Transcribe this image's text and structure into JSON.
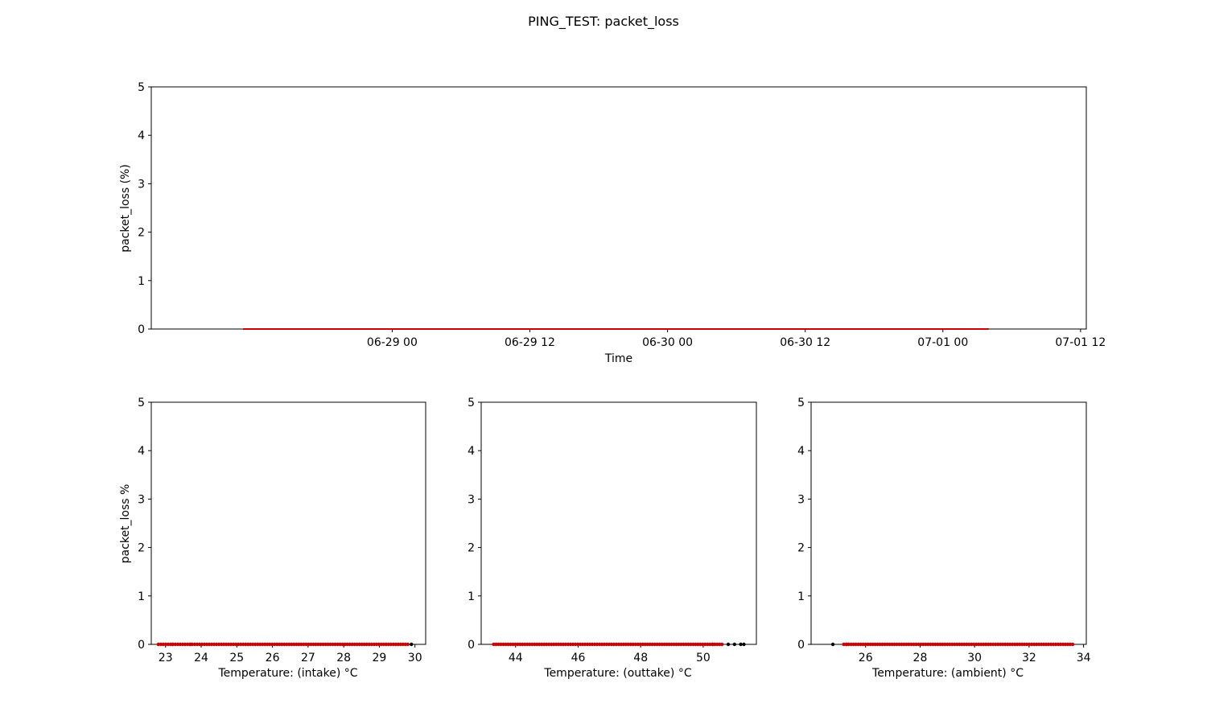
{
  "figure": {
    "title": "PING_TEST: packet_loss"
  },
  "colors": {
    "line": "#cc0000",
    "marker_red": "#cc0000",
    "marker_black": "#000000",
    "axes": "#000000"
  },
  "chart_data": [
    {
      "type": "line",
      "xlabel": "Time",
      "ylabel": "packet_loss (%)",
      "x_tick_labels": [
        "06-29 00",
        "06-29 12",
        "06-30 00",
        "06-30 12",
        "07-01 00",
        "07-01 12"
      ],
      "x_tick_values": [
        "2023-06-29T00:00",
        "2023-06-29T12:00",
        "2023-06-30T00:00",
        "2023-06-30T12:00",
        "2023-07-01T00:00",
        "2023-07-01T12:00"
      ],
      "xlim": [
        "2023-06-28T03:00",
        "2023-07-01T12:30"
      ],
      "ylim": [
        0,
        5
      ],
      "y_ticks": [
        0,
        1,
        2,
        3,
        4,
        5
      ],
      "series": [
        {
          "x": [
            "2023-06-28T11:00",
            "2023-07-01T04:00"
          ],
          "y": [
            0,
            0
          ]
        }
      ]
    },
    {
      "type": "scatter",
      "xlabel": "Temperature: (intake) °C",
      "ylabel": "packet_loss %",
      "xlim": [
        22.6,
        30.3
      ],
      "ylim": [
        0,
        5
      ],
      "x_ticks": [
        23,
        24,
        25,
        26,
        27,
        28,
        29,
        30
      ],
      "y_ticks": [
        0,
        1,
        2,
        3,
        4,
        5
      ],
      "range_red": [
        22.8,
        29.8
      ],
      "black_points": [
        23.2,
        23.7,
        29.9
      ],
      "y_value": 0
    },
    {
      "type": "scatter",
      "xlabel": "Temperature: (outtake) °C",
      "ylabel": "",
      "xlim": [
        42.9,
        51.7
      ],
      "ylim": [
        0,
        5
      ],
      "x_ticks": [
        44,
        46,
        48,
        50
      ],
      "y_ticks": [
        0,
        1,
        2,
        3,
        4,
        5
      ],
      "range_red": [
        43.3,
        50.6
      ],
      "black_points": [
        50.3,
        50.8,
        51.0,
        51.2,
        51.3
      ],
      "y_value": 0
    },
    {
      "type": "scatter",
      "xlabel": "Temperature: (ambient) °C",
      "ylabel": "",
      "xlim": [
        24.0,
        34.1
      ],
      "ylim": [
        0,
        5
      ],
      "x_ticks": [
        26,
        28,
        30,
        32,
        34
      ],
      "y_ticks": [
        0,
        1,
        2,
        3,
        4,
        5
      ],
      "range_red": [
        25.2,
        33.6
      ],
      "black_points": [
        24.8,
        25.3
      ],
      "y_value": 0
    }
  ]
}
